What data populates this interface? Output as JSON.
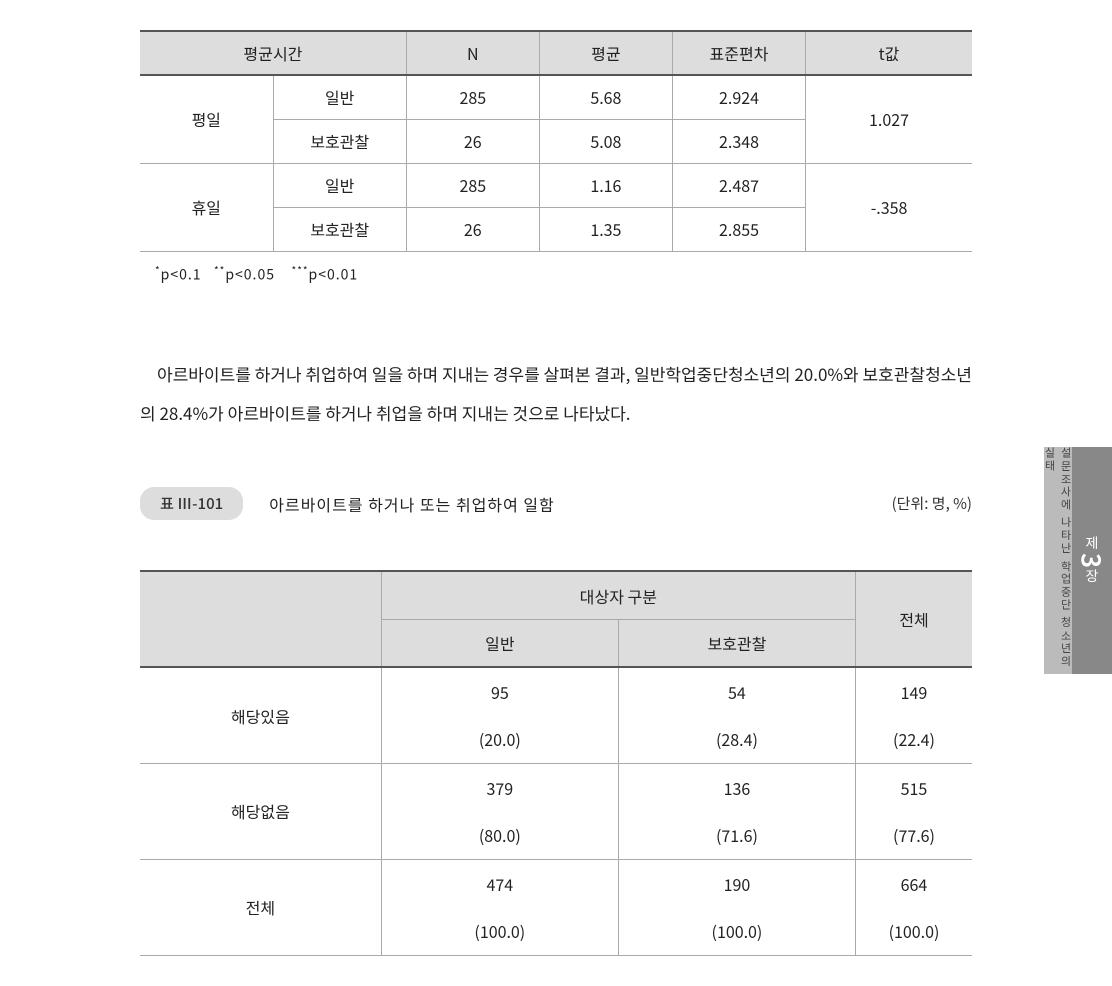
{
  "table1": {
    "headers": {
      "h1": "평균시간",
      "h2": "N",
      "h3": "평균",
      "h4": "표준편차",
      "h5": "t값"
    },
    "groups": [
      {
        "label": "평일",
        "t": "1.027",
        "rows": [
          {
            "type": "일반",
            "n": "285",
            "mean": "5.68",
            "sd": "2.924"
          },
          {
            "type": "보호관찰",
            "n": "26",
            "mean": "5.08",
            "sd": "2.348"
          }
        ]
      },
      {
        "label": "휴일",
        "t": "-.358",
        "rows": [
          {
            "type": "일반",
            "n": "285",
            "mean": "1.16",
            "sd": "2.487"
          },
          {
            "type": "보호관찰",
            "n": "26",
            "mean": "1.35",
            "sd": "2.855"
          }
        ]
      }
    ]
  },
  "footnote": {
    "p1": "p<0.1",
    "p2": "p<0.05",
    "p3": "p<0.01"
  },
  "paragraph": "아르바이트를 하거나 취업하여 일을 하며 지내는 경우를 살펴본 결과, 일반학업중단청소년의 20.0%와 보호관찰청소년의 28.4%가 아르바이트를 하거나 취업을 하며 지내는 것으로 나타났다.",
  "caption": {
    "pill": "표 Ⅲ-101",
    "title": "아르바이트를 하거나 또는 취업하여 일함",
    "unit": "(단위: 명, %)"
  },
  "table2": {
    "headers": {
      "top": "대상자 구분",
      "c1": "일반",
      "c2": "보호관찰",
      "total": "전체"
    },
    "rows": [
      {
        "label": "해당있음",
        "c1a": "95",
        "c1b": "(20.0)",
        "c2a": "54",
        "c2b": "(28.4)",
        "ta": "149",
        "tb": "(22.4)"
      },
      {
        "label": "해당없음",
        "c1a": "379",
        "c1b": "(80.0)",
        "c2a": "136",
        "c2b": "(71.6)",
        "ta": "515",
        "tb": "(77.6)"
      },
      {
        "label": "전체",
        "c1a": "474",
        "c1b": "(100.0)",
        "c2a": "190",
        "c2b": "(100.0)",
        "ta": "664",
        "tb": "(100.0)"
      }
    ]
  },
  "sidetab": {
    "light": "설문조사에 나타난 학업중단 청소년의 실태",
    "dark_pre": "제",
    "dark_num": "3",
    "dark_post": "장"
  }
}
